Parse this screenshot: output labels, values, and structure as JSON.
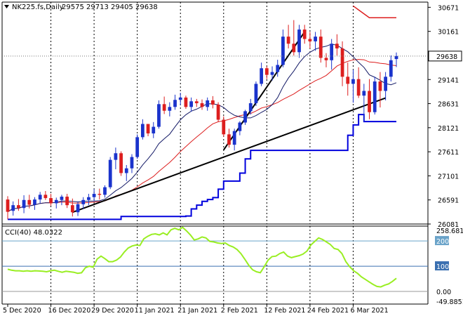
{
  "header": {
    "symbol": "NK225.fs,Daily",
    "ohlc": "29575 29713 29405 29638",
    "collapse_glyph": "triangle-down-icon"
  },
  "price_axis": {
    "labels": [
      "30671",
      "30161",
      "29141",
      "28631",
      "28121",
      "27611",
      "27101",
      "26591",
      "26081"
    ],
    "current_price_label": "29638"
  },
  "indicator": {
    "title": "CCI(40) 48.0322",
    "axis_labels": [
      "258.6815",
      "200",
      "100",
      "0.00",
      "-49.8851"
    ],
    "levels": [
      200,
      100,
      0
    ],
    "range": [
      -49.8851,
      258.6815
    ],
    "series": [
      88,
      84,
      82,
      82,
      80,
      82,
      80,
      82,
      81,
      80,
      78,
      82,
      84,
      80,
      76,
      80,
      78,
      76,
      72,
      74,
      94,
      100,
      96,
      128,
      140,
      130,
      118,
      118,
      124,
      136,
      156,
      172,
      180,
      184,
      182,
      208,
      218,
      226,
      228,
      224,
      232,
      224,
      244,
      250,
      244,
      254,
      240,
      224,
      204,
      208,
      216,
      212,
      198,
      196,
      192,
      190,
      192,
      182,
      176,
      166,
      150,
      128,
      104,
      86,
      78,
      74,
      98,
      124,
      138,
      140,
      150,
      156,
      140,
      134,
      138,
      142,
      148,
      160,
      184,
      198,
      212,
      206,
      196,
      186,
      170,
      166,
      150,
      118,
      98,
      82,
      72,
      58,
      48,
      38,
      28,
      20,
      18,
      25,
      30,
      40,
      52
    ]
  },
  "time_axis": {
    "labels": [
      "5 Dec 2020",
      "16 Dec 2020",
      "29 Dec 2020",
      "11 Jan 2021",
      "21 Jan 2021",
      "2 Feb 2021",
      "12 Feb 2021",
      "24 Feb 2021",
      "6 Mar 2021"
    ]
  },
  "colors": {
    "bull": "#1a33cc",
    "bear": "#dd1e1e",
    "bollinger": "#141a66",
    "support_line": "#0000dd",
    "sma": "#dd1e1e",
    "trendline": "#000000",
    "cci": "#99ee22",
    "level_200": "#6aa3c9",
    "level_100": "#3a6fb0"
  },
  "chart_data": [
    {
      "type": "candlestick",
      "title": "NK225.fs,Daily",
      "ylim": [
        26081,
        30781
      ],
      "x": [
        "5 Dec 2020",
        "16 Dec 2020",
        "29 Dec 2020",
        "11 Jan 2021",
        "21 Jan 2021",
        "2 Feb 2021",
        "12 Feb 2021",
        "24 Feb 2021",
        "6 Mar 2021"
      ],
      "candles": [
        [
          26600,
          26670,
          26180,
          26340
        ],
        [
          26360,
          26560,
          26260,
          26480
        ],
        [
          26480,
          26610,
          26360,
          26420
        ],
        [
          26420,
          26690,
          26310,
          26590
        ],
        [
          26590,
          26700,
          26410,
          26490
        ],
        [
          26490,
          26650,
          26380,
          26600
        ],
        [
          26600,
          26760,
          26520,
          26700
        ],
        [
          26700,
          26780,
          26590,
          26630
        ],
        [
          26630,
          26720,
          26470,
          26520
        ],
        [
          26520,
          26640,
          26410,
          26590
        ],
        [
          26590,
          26700,
          26480,
          26660
        ],
        [
          26660,
          26720,
          26420,
          26480
        ],
        [
          26480,
          26620,
          26240,
          26330
        ],
        [
          26330,
          26560,
          26250,
          26500
        ],
        [
          26500,
          26650,
          26400,
          26590
        ],
        [
          26590,
          26720,
          26480,
          26650
        ],
        [
          26650,
          26820,
          26560,
          26720
        ],
        [
          26720,
          26830,
          26600,
          26700
        ],
        [
          26700,
          26900,
          26640,
          26860
        ],
        [
          26860,
          27500,
          26820,
          27440
        ],
        [
          27440,
          27700,
          27240,
          27580
        ],
        [
          27580,
          27620,
          27100,
          27160
        ],
        [
          27160,
          27330,
          26990,
          27260
        ],
        [
          27260,
          27560,
          27160,
          27500
        ],
        [
          27500,
          27980,
          27460,
          27920
        ],
        [
          27920,
          28300,
          27870,
          28200
        ],
        [
          28200,
          28200,
          27940,
          28000
        ],
        [
          28000,
          28240,
          27900,
          28140
        ],
        [
          28140,
          28700,
          28100,
          28620
        ],
        [
          28620,
          28780,
          28410,
          28480
        ],
        [
          28480,
          28660,
          28360,
          28560
        ],
        [
          28560,
          28820,
          28500,
          28710
        ],
        [
          28710,
          28860,
          28600,
          28760
        ],
        [
          28760,
          28800,
          28520,
          28560
        ],
        [
          28560,
          28760,
          28460,
          28680
        ],
        [
          28680,
          28730,
          28560,
          28640
        ],
        [
          28640,
          28720,
          28500,
          28560
        ],
        [
          28560,
          28760,
          28480,
          28700
        ],
        [
          28700,
          28790,
          28530,
          28610
        ],
        [
          28610,
          28660,
          28240,
          28290
        ],
        [
          28290,
          28360,
          27930,
          27980
        ],
        [
          27980,
          28100,
          27700,
          27760
        ],
        [
          27760,
          28100,
          27640,
          28050
        ],
        [
          28050,
          28260,
          27960,
          28230
        ],
        [
          28230,
          28500,
          28180,
          28470
        ],
        [
          28470,
          28730,
          28400,
          28640
        ],
        [
          28640,
          29100,
          28580,
          29050
        ],
        [
          29050,
          29500,
          29000,
          29380
        ],
        [
          29380,
          29420,
          29150,
          29240
        ],
        [
          29240,
          29420,
          29120,
          29300
        ],
        [
          29300,
          29560,
          29200,
          29450
        ],
        [
          29450,
          30200,
          29400,
          30050
        ],
        [
          30050,
          30300,
          29800,
          29900
        ],
        [
          29900,
          30400,
          29650,
          29720
        ],
        [
          29720,
          30300,
          29600,
          30200
        ],
        [
          30200,
          30300,
          29900,
          30000
        ],
        [
          30000,
          30150,
          29800,
          29950
        ],
        [
          29950,
          30150,
          29750,
          30050
        ],
        [
          30050,
          30200,
          29500,
          29600
        ],
        [
          29600,
          29700,
          29400,
          29550
        ],
        [
          29550,
          30000,
          29350,
          29900
        ],
        [
          29900,
          30100,
          29650,
          29800
        ],
        [
          29800,
          29950,
          29000,
          29200
        ],
        [
          29200,
          29500,
          28800,
          29050
        ],
        [
          29050,
          29350,
          28650,
          29150
        ],
        [
          29150,
          29400,
          28750,
          28800
        ],
        [
          28800,
          29050,
          28250,
          28900
        ],
        [
          28900,
          29150,
          28300,
          28450
        ],
        [
          28450,
          29200,
          28400,
          29100
        ],
        [
          29100,
          29300,
          28550,
          28900
        ],
        [
          28900,
          29300,
          28700,
          29200
        ],
        [
          29200,
          29650,
          29100,
          29550
        ],
        [
          29575,
          29713,
          29405,
          29638
        ]
      ]
    },
    {
      "type": "line",
      "title": "CCI(40) 48.0322",
      "ylim": [
        -49.8851,
        258.6815
      ]
    }
  ]
}
